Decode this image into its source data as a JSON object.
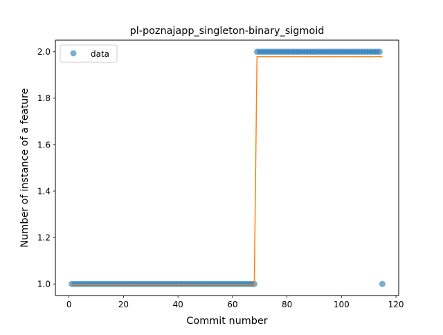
{
  "chart_data": {
    "type": "scatter",
    "title": "pl-poznajapp_singleton-binary_sigmoid",
    "xlabel": "Commit number",
    "ylabel": "Number of instance of a feature",
    "xlim": [
      -5,
      121
    ],
    "ylim": [
      0.95,
      2.05
    ],
    "x_ticks": [
      0,
      20,
      40,
      60,
      80,
      100,
      120
    ],
    "y_ticks": [
      1.0,
      1.2,
      1.4,
      1.6,
      1.8,
      2.0
    ],
    "x_tick_labels": [
      "0",
      "20",
      "40",
      "60",
      "80",
      "100",
      "120"
    ],
    "y_tick_labels": [
      "1.0",
      "1.2",
      "1.4",
      "1.6",
      "1.8",
      "2.0"
    ],
    "grid": false,
    "legend_position": "upper-left",
    "series": [
      {
        "name": "data",
        "kind": "scatter",
        "color": "#1f77b4",
        "points": [
          {
            "x_start": 1,
            "x_end": 68,
            "y": 1.0
          },
          {
            "x_start": 69,
            "x_end": 114,
            "y": 2.0
          },
          {
            "x_start": 115,
            "x_end": 115,
            "y": 1.0
          }
        ]
      },
      {
        "kind": "line",
        "color": "#ff7f0e",
        "points": [
          {
            "x": 1,
            "y": 0.997
          },
          {
            "x": 68,
            "y": 0.997
          },
          {
            "x": 69,
            "y": 1.979
          },
          {
            "x": 115,
            "y": 1.979
          }
        ]
      }
    ]
  }
}
